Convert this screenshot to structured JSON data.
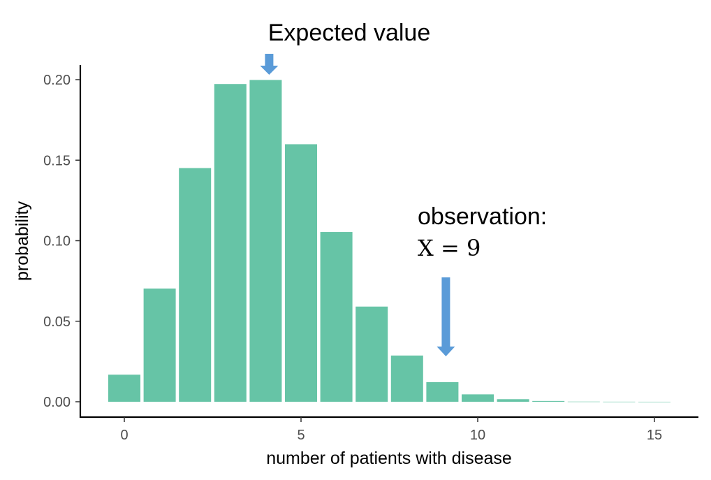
{
  "chart_data": {
    "type": "bar",
    "title": "",
    "xlabel": "number of patients with disease",
    "ylabel": "probability",
    "x": [
      0,
      1,
      2,
      3,
      4,
      5,
      6,
      7,
      8,
      9,
      10,
      11,
      12,
      13,
      14,
      15
    ],
    "values": [
      0.0168,
      0.0703,
      0.1451,
      0.1973,
      0.1998,
      0.1599,
      0.1054,
      0.0591,
      0.0287,
      0.0122,
      0.0046,
      0.0016,
      0.0005,
      0.0001,
      4e-05,
      1e-05
    ],
    "xlim": [
      -0.5,
      15.5
    ],
    "ylim": [
      0,
      0.2
    ],
    "xticks": [
      0,
      5,
      10,
      15
    ],
    "xtick_labels": [
      "0",
      "5",
      "10",
      "15"
    ],
    "yticks": [
      0,
      0.05,
      0.1,
      0.15,
      0.2
    ],
    "ytick_labels": [
      "0.00",
      "0.05",
      "0.10",
      "0.15",
      "0.20"
    ],
    "grid": false,
    "bar_color": "#66c4a6",
    "annotations": [
      {
        "name": "expected-value",
        "text": "Expected value",
        "x": 4
      },
      {
        "name": "observation",
        "text": "observation:",
        "formula": "X = 9",
        "x": 9
      }
    ],
    "arrow_color": "#5a9bd8"
  }
}
